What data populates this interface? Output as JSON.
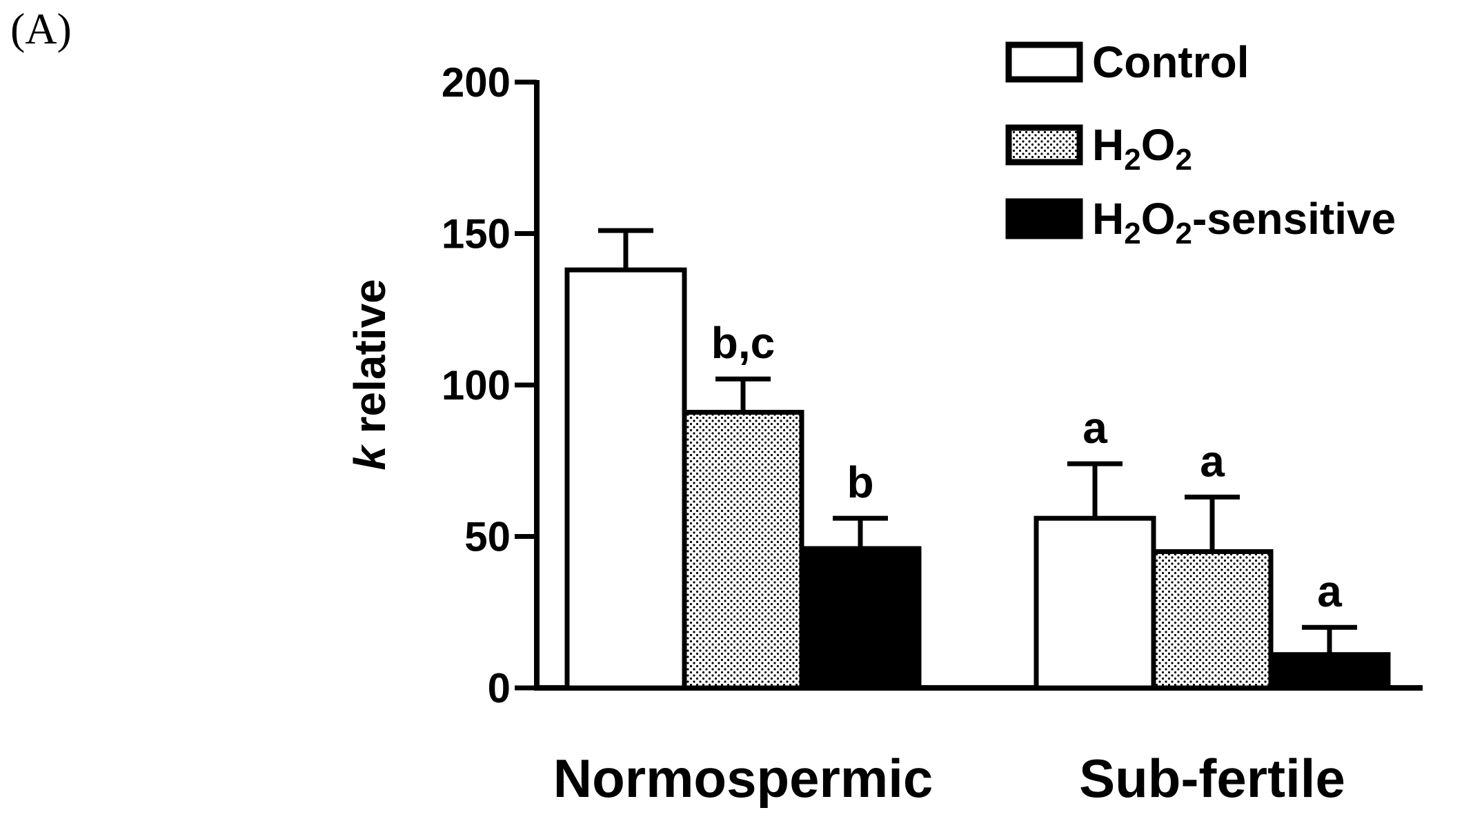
{
  "panel_label": "(A)",
  "chart_data": {
    "type": "bar",
    "categories": [
      "Normospermic",
      "Sub-fertile"
    ],
    "series": [
      {
        "name": "Control",
        "values": [
          138,
          56
        ],
        "errors": [
          13,
          18
        ],
        "fill": "white",
        "annotations": [
          "",
          "a"
        ]
      },
      {
        "name": "H2O2",
        "values": [
          91,
          45
        ],
        "errors": [
          11,
          18
        ],
        "fill": "dots",
        "annotations": [
          "b,c",
          "a"
        ]
      },
      {
        "name": "H2O2-sensitive",
        "values": [
          46,
          11
        ],
        "errors": [
          10,
          9
        ],
        "fill": "black",
        "annotations": [
          "b",
          "a"
        ]
      }
    ],
    "legend_labels": [
      {
        "main": "Control",
        "parts": [
          {
            "t": "Control",
            "sub": false
          }
        ]
      },
      {
        "main": "H2O2",
        "parts": [
          {
            "t": "H",
            "sub": false
          },
          {
            "t": "2",
            "sub": true
          },
          {
            "t": "O",
            "sub": false
          },
          {
            "t": "2",
            "sub": true
          }
        ]
      },
      {
        "main": "H2O2-sensitive",
        "parts": [
          {
            "t": "H",
            "sub": false
          },
          {
            "t": "2",
            "sub": true
          },
          {
            "t": "O",
            "sub": false
          },
          {
            "t": "2",
            "sub": true
          },
          {
            "t": "-sensitive",
            "sub": false
          }
        ]
      }
    ],
    "ylabel_italic": "k",
    "ylabel_rest": " relative",
    "xlabel": "",
    "ylim": [
      0,
      200
    ],
    "yticks": [
      0,
      50,
      100,
      150,
      200
    ],
    "grid": false,
    "legend_position": "top-right",
    "colors": {
      "bar_stroke": "#000000",
      "dots": "#000000",
      "fill_black": "#000000",
      "fill_white": "#ffffff"
    }
  }
}
